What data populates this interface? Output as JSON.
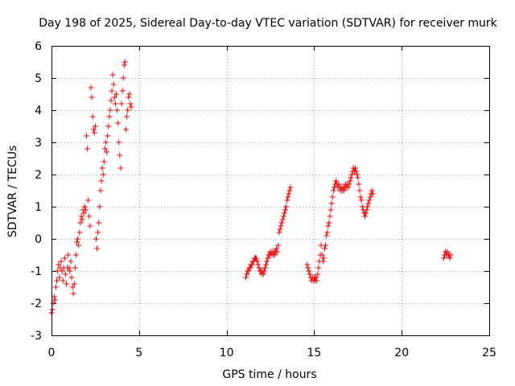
{
  "chart_data": {
    "type": "scatter",
    "title": "Day 198 of 2025, Sidereal Day-to-day VTEC variation (SDTVAR) for receiver murk",
    "xlabel": "GPS time / hours",
    "ylabel": "SDTVAR / TECUs",
    "xlim": [
      0,
      25
    ],
    "ylim": [
      -3,
      6
    ],
    "xticks": [
      "0",
      "5",
      "10",
      "15",
      "20",
      "25"
    ],
    "yticks": [
      "-3",
      "-2",
      "-1",
      "0",
      "1",
      "2",
      "3",
      "4",
      "5",
      "6"
    ],
    "grid": true,
    "marker": "plus",
    "color": "#ff0000",
    "series": [
      {
        "name": "SDTVAR",
        "points": [
          [
            0.0,
            -2.3
          ],
          [
            0.05,
            -2.2
          ],
          [
            0.1,
            -2.0
          ],
          [
            0.15,
            -1.8
          ],
          [
            0.2,
            -1.9
          ],
          [
            0.25,
            -1.5
          ],
          [
            0.3,
            -1.3
          ],
          [
            0.35,
            -1.0
          ],
          [
            0.4,
            -0.8
          ],
          [
            0.45,
            -1.2
          ],
          [
            0.5,
            -0.9
          ],
          [
            0.55,
            -0.7
          ],
          [
            0.6,
            -1.0
          ],
          [
            0.65,
            -1.3
          ],
          [
            0.7,
            -0.9
          ],
          [
            0.75,
            -0.6
          ],
          [
            0.8,
            -1.1
          ],
          [
            0.85,
            -1.4
          ],
          [
            0.9,
            -0.9
          ],
          [
            0.95,
            -0.5
          ],
          [
            1.0,
            -0.9
          ],
          [
            1.05,
            -1.0
          ],
          [
            1.1,
            -0.7
          ],
          [
            1.15,
            -1.2
          ],
          [
            1.2,
            -1.5
          ],
          [
            1.25,
            -1.7
          ],
          [
            1.3,
            -1.4
          ],
          [
            1.35,
            -0.9
          ],
          [
            1.4,
            -0.5
          ],
          [
            1.45,
            -0.1
          ],
          [
            1.5,
            0.0
          ],
          [
            1.55,
            -0.2
          ],
          [
            1.6,
            0.2
          ],
          [
            1.65,
            0.5
          ],
          [
            1.7,
            0.7
          ],
          [
            1.75,
            0.6
          ],
          [
            1.8,
            0.9
          ],
          [
            1.85,
            0.8
          ],
          [
            1.9,
            1.0
          ],
          [
            1.95,
            0.9
          ],
          [
            2.0,
            3.2
          ],
          [
            2.05,
            2.8
          ],
          [
            2.1,
            1.2
          ],
          [
            2.15,
            0.7
          ],
          [
            2.2,
            0.4
          ],
          [
            2.25,
            4.7
          ],
          [
            2.3,
            4.4
          ],
          [
            2.35,
            3.8
          ],
          [
            2.4,
            3.4
          ],
          [
            2.45,
            3.3
          ],
          [
            2.5,
            3.5
          ],
          [
            2.55,
            0.0
          ],
          [
            2.6,
            -0.3
          ],
          [
            2.65,
            0.2
          ],
          [
            2.7,
            0.5
          ],
          [
            2.75,
            1.0
          ],
          [
            2.8,
            1.5
          ],
          [
            2.85,
            1.8
          ],
          [
            2.9,
            2.2
          ],
          [
            2.95,
            2.0
          ],
          [
            3.0,
            2.4
          ],
          [
            3.05,
            2.8
          ],
          [
            3.1,
            3.0
          ],
          [
            3.15,
            2.7
          ],
          [
            3.2,
            3.2
          ],
          [
            3.25,
            3.5
          ],
          [
            3.3,
            3.8
          ],
          [
            3.35,
            4.0
          ],
          [
            3.4,
            4.3
          ],
          [
            3.45,
            4.6
          ],
          [
            3.5,
            5.1
          ],
          [
            3.55,
            4.8
          ],
          [
            3.6,
            4.4
          ],
          [
            3.65,
            4.2
          ],
          [
            3.7,
            4.5
          ],
          [
            3.75,
            4.0
          ],
          [
            3.8,
            3.6
          ],
          [
            3.85,
            3.0
          ],
          [
            3.9,
            2.6
          ],
          [
            3.95,
            2.2
          ],
          [
            4.0,
            4.2
          ],
          [
            4.05,
            4.6
          ],
          [
            4.1,
            5.0
          ],
          [
            4.15,
            5.4
          ],
          [
            4.2,
            5.5
          ],
          [
            4.25,
            3.4
          ],
          [
            4.3,
            3.8
          ],
          [
            4.35,
            4.0
          ],
          [
            4.4,
            4.4
          ],
          [
            4.45,
            4.5
          ],
          [
            4.5,
            4.2
          ],
          [
            4.55,
            4.1
          ],
          [
            11.1,
            -1.2
          ],
          [
            11.15,
            -1.1
          ],
          [
            11.2,
            -1.0
          ],
          [
            11.25,
            -1.0
          ],
          [
            11.3,
            -0.9
          ],
          [
            11.35,
            -0.9
          ],
          [
            11.4,
            -0.8
          ],
          [
            11.45,
            -0.8
          ],
          [
            11.5,
            -0.7
          ],
          [
            11.55,
            -0.7
          ],
          [
            11.6,
            -0.6
          ],
          [
            11.65,
            -0.6
          ],
          [
            11.7,
            -0.6
          ],
          [
            11.75,
            -0.7
          ],
          [
            11.8,
            -0.8
          ],
          [
            11.85,
            -0.9
          ],
          [
            11.9,
            -1.0
          ],
          [
            11.95,
            -1.0
          ],
          [
            12.0,
            -1.1
          ],
          [
            12.05,
            -1.0
          ],
          [
            12.1,
            -1.1
          ],
          [
            12.15,
            -1.0
          ],
          [
            12.2,
            -0.9
          ],
          [
            12.25,
            -0.8
          ],
          [
            12.3,
            -0.7
          ],
          [
            12.35,
            -0.6
          ],
          [
            12.4,
            -0.5
          ],
          [
            12.45,
            -0.5
          ],
          [
            12.5,
            -0.4
          ],
          [
            12.55,
            -0.5
          ],
          [
            12.6,
            -0.4
          ],
          [
            12.65,
            -0.5
          ],
          [
            12.7,
            -0.4
          ],
          [
            12.75,
            -0.5
          ],
          [
            12.8,
            -0.4
          ],
          [
            12.85,
            -0.3
          ],
          [
            12.9,
            -0.4
          ],
          [
            12.95,
            -0.2
          ],
          [
            13.0,
            0.2
          ],
          [
            13.05,
            0.3
          ],
          [
            13.1,
            0.4
          ],
          [
            13.15,
            0.5
          ],
          [
            13.2,
            0.6
          ],
          [
            13.25,
            0.7
          ],
          [
            13.3,
            0.8
          ],
          [
            13.35,
            0.9
          ],
          [
            13.4,
            1.0
          ],
          [
            13.45,
            1.2
          ],
          [
            13.5,
            1.3
          ],
          [
            13.55,
            1.4
          ],
          [
            13.6,
            1.5
          ],
          [
            13.65,
            1.6
          ],
          [
            14.6,
            -0.8
          ],
          [
            14.65,
            -0.9
          ],
          [
            14.7,
            -1.0
          ],
          [
            14.75,
            -1.1
          ],
          [
            14.8,
            -1.2
          ],
          [
            14.85,
            -1.3
          ],
          [
            14.9,
            -1.2
          ],
          [
            14.95,
            -1.3
          ],
          [
            15.0,
            -1.2
          ],
          [
            15.05,
            -1.3
          ],
          [
            15.1,
            -1.2
          ],
          [
            15.15,
            -1.3
          ],
          [
            15.2,
            -1.1
          ],
          [
            15.25,
            -0.9
          ],
          [
            15.3,
            -0.7
          ],
          [
            15.35,
            -0.5
          ],
          [
            15.4,
            -0.2
          ],
          [
            15.45,
            -0.5
          ],
          [
            15.5,
            -0.7
          ],
          [
            15.55,
            -0.6
          ],
          [
            15.6,
            -0.3
          ],
          [
            15.65,
            -0.2
          ],
          [
            15.7,
            0.1
          ],
          [
            15.75,
            0.2
          ],
          [
            15.8,
            0.4
          ],
          [
            15.85,
            0.5
          ],
          [
            15.9,
            0.7
          ],
          [
            15.95,
            0.9
          ],
          [
            16.0,
            1.1
          ],
          [
            16.05,
            1.3
          ],
          [
            16.1,
            1.5
          ],
          [
            16.15,
            1.6
          ],
          [
            16.2,
            1.7
          ],
          [
            16.25,
            1.8
          ],
          [
            16.3,
            1.7
          ],
          [
            16.35,
            1.6
          ],
          [
            16.4,
            1.7
          ],
          [
            16.45,
            1.6
          ],
          [
            16.5,
            1.5
          ],
          [
            16.55,
            1.6
          ],
          [
            16.6,
            1.5
          ],
          [
            16.65,
            1.6
          ],
          [
            16.7,
            1.5
          ],
          [
            16.75,
            1.6
          ],
          [
            16.8,
            1.7
          ],
          [
            16.85,
            1.6
          ],
          [
            16.9,
            1.7
          ],
          [
            16.95,
            1.6
          ],
          [
            17.0,
            1.7
          ],
          [
            17.05,
            1.8
          ],
          [
            17.1,
            1.9
          ],
          [
            17.15,
            2.0
          ],
          [
            17.2,
            2.1
          ],
          [
            17.25,
            2.2
          ],
          [
            17.3,
            2.1
          ],
          [
            17.35,
            2.2
          ],
          [
            17.4,
            2.1
          ],
          [
            17.45,
            2.0
          ],
          [
            17.5,
            1.9
          ],
          [
            17.55,
            1.7
          ],
          [
            17.6,
            1.5
          ],
          [
            17.65,
            1.3
          ],
          [
            17.7,
            1.2
          ],
          [
            17.75,
            1.0
          ],
          [
            17.8,
            0.9
          ],
          [
            17.85,
            0.8
          ],
          [
            17.9,
            0.7
          ],
          [
            17.95,
            0.8
          ],
          [
            18.0,
            0.9
          ],
          [
            18.05,
            1.0
          ],
          [
            18.1,
            1.1
          ],
          [
            18.15,
            1.2
          ],
          [
            18.2,
            1.3
          ],
          [
            18.25,
            1.4
          ],
          [
            18.3,
            1.5
          ],
          [
            18.35,
            1.4
          ],
          [
            22.4,
            -0.6
          ],
          [
            22.45,
            -0.5
          ],
          [
            22.5,
            -0.4
          ],
          [
            22.55,
            -0.5
          ],
          [
            22.6,
            -0.4
          ],
          [
            22.65,
            -0.5
          ],
          [
            22.7,
            -0.5
          ],
          [
            22.75,
            -0.6
          ],
          [
            22.8,
            -0.5
          ]
        ]
      }
    ]
  }
}
